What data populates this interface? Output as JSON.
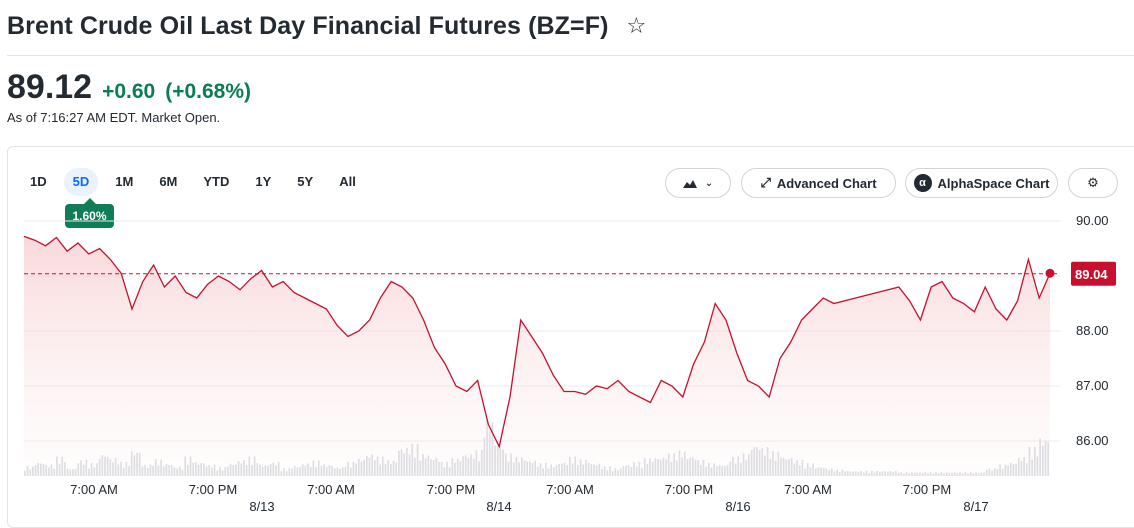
{
  "header": {
    "title": "Brent Crude Oil Last Day Financial Futures (BZ=F)",
    "star_icon": "star-outline-icon"
  },
  "quote": {
    "price": "89.12",
    "change": "+0.60",
    "change_percent": "(+0.68%)",
    "as_of": "As of 7:16:27 AM EDT. Market Open.",
    "positive_color": "#0b7d53"
  },
  "toolbar": {
    "ranges": [
      "1D",
      "5D",
      "1M",
      "6M",
      "YTD",
      "1Y",
      "5Y",
      "All"
    ],
    "active_range": "5D",
    "range_change_badge": "1.60%",
    "chart_type_icon": "mountain-chart-icon",
    "advanced_chart_label": "Advanced Chart",
    "alphaspace_label": "AlphaSpace Chart",
    "settings_icon": "gear-icon"
  },
  "chart_data": {
    "type": "area",
    "y_ticks": [
      "90.00",
      "88.00",
      "87.00",
      "86.00"
    ],
    "ylim": [
      85.6,
      90.3
    ],
    "current_value": "89.04",
    "reference_line": 89.04,
    "x_tick_times": [
      "7:00 AM",
      "7:00 PM",
      "7:00 AM",
      "7:00 PM",
      "7:00 AM",
      "7:00 PM",
      "7:00 AM",
      "7:00 PM"
    ],
    "x_tick_dates": [
      "8/13",
      "8/14",
      "8/16",
      "8/17"
    ],
    "line_color": "#c8102e",
    "series": [
      {
        "values": [
          89.72,
          89.65,
          89.55,
          89.7,
          89.45,
          89.6,
          89.4,
          89.5,
          89.3,
          89.05,
          88.4,
          88.9,
          89.2,
          88.8,
          89.0,
          88.7,
          88.6,
          88.85,
          89.0,
          88.9,
          88.75,
          88.95,
          89.1,
          88.8,
          88.9,
          88.7,
          88.6,
          88.5,
          88.4,
          88.1,
          87.9,
          88.0,
          88.2,
          88.6,
          88.9,
          88.8,
          88.6,
          88.2,
          87.7,
          87.4,
          87.0,
          86.9,
          87.1,
          86.3,
          85.9,
          86.8,
          88.2,
          87.9,
          87.6,
          87.2,
          86.9,
          86.9,
          86.85,
          87.0,
          86.95,
          87.1,
          86.9,
          86.8,
          86.7,
          87.1,
          87.0,
          86.8,
          87.4,
          87.8,
          88.5,
          88.2,
          87.6,
          87.1,
          87.0,
          86.8,
          87.5,
          87.8,
          88.2,
          88.4,
          88.6,
          88.5,
          88.55,
          88.6,
          88.65,
          88.7,
          88.75,
          88.8,
          88.55,
          88.2,
          88.8,
          88.9,
          88.6,
          88.5,
          88.35,
          88.8,
          88.4,
          88.2,
          88.55,
          89.3,
          88.6,
          89.05
        ]
      }
    ]
  },
  "volume": {
    "bars": [
      0.15,
      0.22,
      0.18,
      0.3,
      0.12,
      0.25,
      0.2,
      0.35,
      0.28,
      0.22,
      0.4,
      0.18,
      0.26,
      0.2,
      0.15,
      0.3,
      0.22,
      0.18,
      0.14,
      0.2,
      0.25,
      0.3,
      0.18,
      0.22,
      0.12,
      0.16,
      0.2,
      0.24,
      0.18,
      0.14,
      0.22,
      0.28,
      0.35,
      0.3,
      0.25,
      0.45,
      0.5,
      0.35,
      0.3,
      0.22,
      0.28,
      0.35,
      0.4,
      0.9,
      0.55,
      0.35,
      0.3,
      0.25,
      0.2,
      0.18,
      0.22,
      0.3,
      0.26,
      0.2,
      0.15,
      0.12,
      0.18,
      0.22,
      0.28,
      0.3,
      0.35,
      0.4,
      0.32,
      0.25,
      0.2,
      0.18,
      0.3,
      0.35,
      0.5,
      0.45,
      0.38,
      0.3,
      0.25,
      0.2,
      0.15,
      0.12,
      0.1,
      0.08,
      0.08,
      0.08,
      0.08,
      0.08,
      0.06,
      0.06,
      0.06,
      0.06,
      0.06,
      0.06,
      0.06,
      0.06,
      0.12,
      0.18,
      0.22,
      0.3,
      0.45,
      0.6
    ],
    "color": "#d7dbe0"
  }
}
